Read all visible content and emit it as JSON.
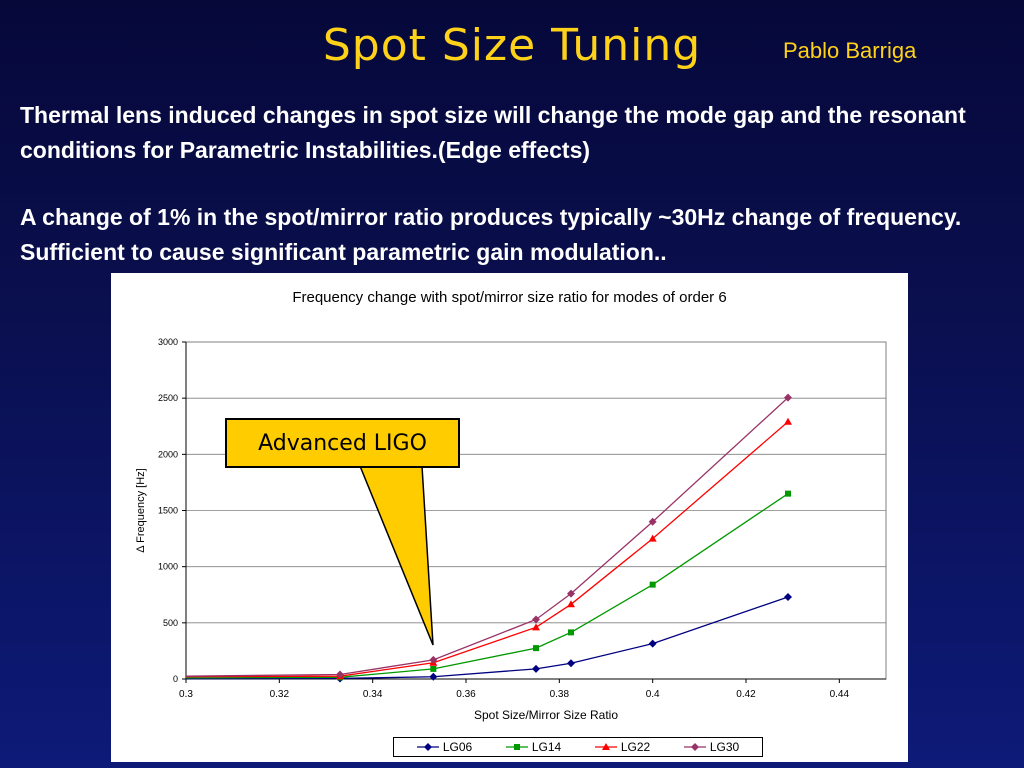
{
  "slide": {
    "title": "Spot Size Tuning",
    "author": "Pablo Barriga",
    "paragraph1": "Thermal lens induced changes in spot size will change the mode gap and the resonant conditions for Parametric Instabilities.(Edge effects)",
    "paragraph2": "A change of 1% in the spot/mirror ratio produces typically ~30Hz change of frequency. Sufficient to cause significant parametric gain modulation..",
    "callout": "Advanced LIGO"
  },
  "chart_data": {
    "type": "line",
    "title": "Frequency change with spot/mirror size ratio for modes of order 6",
    "xlabel": "Spot Size/Mirror Size Ratio",
    "ylabel": "Δ Frequency [Hz]",
    "xlim": [
      0.3,
      0.45
    ],
    "ylim": [
      0,
      3000
    ],
    "xticks": [
      "0.3",
      "0.32",
      "0.34",
      "0.36",
      "0.38",
      "0.4",
      "0.42",
      "0.44"
    ],
    "yticks": [
      "0",
      "500",
      "1000",
      "1500",
      "2000",
      "2500",
      "3000"
    ],
    "grid": "horizontal",
    "legend_position": "bottom",
    "series": [
      {
        "name": "LG06",
        "color": "#000080",
        "marker": "diamond",
        "x": [
          0.3,
          0.333,
          0.353,
          0.375,
          0.3825,
          0.4,
          0.429
        ],
        "y": [
          2,
          5,
          20,
          90,
          140,
          315,
          730
        ]
      },
      {
        "name": "LG14",
        "color": "#009900",
        "marker": "square",
        "x": [
          0.3,
          0.333,
          0.353,
          0.375,
          0.3825,
          0.4,
          0.429
        ],
        "y": [
          10,
          15,
          90,
          275,
          415,
          840,
          1650
        ]
      },
      {
        "name": "LG22",
        "color": "#ff0000",
        "marker": "triangle",
        "x": [
          0.3,
          0.333,
          0.353,
          0.375,
          0.3825,
          0.4,
          0.429
        ],
        "y": [
          20,
          25,
          145,
          460,
          665,
          1250,
          2290
        ]
      },
      {
        "name": "LG30",
        "color": "#993366",
        "marker": "diamond",
        "x": [
          0.3,
          0.333,
          0.353,
          0.375,
          0.3825,
          0.4,
          0.429
        ],
        "y": [
          25,
          40,
          170,
          530,
          760,
          1400,
          2505
        ]
      }
    ]
  }
}
